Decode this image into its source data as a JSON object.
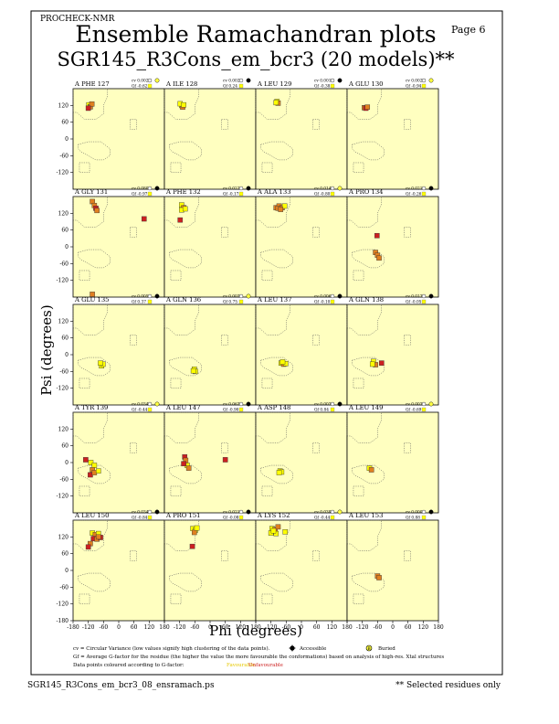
{
  "header": {
    "program": "PROCHECK-NMR",
    "page": "Page  6",
    "title1": "Ensemble Ramachandran plots",
    "title2": "SGR145_R3Cons_em_bcr3 (20 models)**"
  },
  "chart_data": {
    "type": "scatter",
    "title": "Ensemble Ramachandran plots",
    "xlabel": "Phi (degrees)",
    "ylabel": "Psi (degrees)",
    "xlim": [
      -180,
      180
    ],
    "ylim": [
      -180,
      180
    ],
    "xticks": [
      "-180",
      "-120",
      "-60",
      "0",
      "60",
      "120",
      "180"
    ],
    "yticks": [
      "120",
      "60",
      "0",
      "-60",
      "-120"
    ],
    "yticks_bottom": [
      "120",
      "60",
      "0",
      "-60",
      "-120",
      "-180"
    ],
    "panels": [
      {
        "label": "A PHE 127",
        "cv": "cv 0.002",
        "gf": "Gf -0.62",
        "points": [
          [
            -118,
            122,
            "y"
          ],
          [
            -112,
            115,
            "o"
          ],
          [
            -106,
            125,
            "o"
          ],
          [
            -120,
            110,
            "r"
          ]
        ]
      },
      {
        "label": "A ILE 128",
        "cv": "cv 0.002",
        "gf": "Gf 0.24",
        "points": [
          [
            -112,
            120,
            "y"
          ],
          [
            -108,
            114,
            "o"
          ],
          [
            -118,
            126,
            "y"
          ],
          [
            -104,
            122,
            "y"
          ]
        ]
      },
      {
        "label": "A LEU 129",
        "cv": "cv 0.001",
        "gf": "Gf -0.38",
        "points": [
          [
            -96,
            134,
            "y"
          ],
          [
            -92,
            128,
            "o"
          ],
          [
            -100,
            130,
            "y"
          ]
        ]
      },
      {
        "label": "A GLU 130",
        "cv": "cv 0.002",
        "gf": "Gf -0.94",
        "points": [
          [
            -112,
            112,
            "o"
          ],
          [
            -106,
            110,
            "r"
          ],
          [
            -100,
            114,
            "o"
          ]
        ]
      },
      {
        "label": "A GLY 131",
        "cv": "cv 0.080",
        "gf": "Gf -0.97",
        "points": [
          [
            -104,
            162,
            "o"
          ],
          [
            -96,
            148,
            "o"
          ],
          [
            -90,
            138,
            "r"
          ],
          [
            -86,
            130,
            "o"
          ],
          [
            100,
            100,
            "r"
          ],
          [
            -104,
            -170,
            "o"
          ]
        ]
      },
      {
        "label": "A PHE 132",
        "cv": "cv 0.022",
        "gf": "Gf -0.17",
        "points": [
          [
            -112,
            150,
            "y"
          ],
          [
            -104,
            140,
            "o"
          ],
          [
            -112,
            132,
            "y"
          ],
          [
            -98,
            136,
            "y"
          ],
          [
            -118,
            96,
            "r"
          ]
        ]
      },
      {
        "label": "A ALA 133",
        "cv": "cv 0.014",
        "gf": "Gf -0.80",
        "points": [
          [
            -100,
            140,
            "o"
          ],
          [
            -88,
            146,
            "o"
          ],
          [
            -76,
            140,
            "o"
          ],
          [
            -66,
            146,
            "y"
          ],
          [
            -92,
            138,
            "o"
          ],
          [
            -82,
            134,
            "o"
          ]
        ]
      },
      {
        "label": "A PRO 134",
        "cv": "cv 0.021",
        "gf": "Gf -0.26",
        "points": [
          [
            -68,
            -20,
            "o"
          ],
          [
            -60,
            -30,
            "o"
          ],
          [
            -54,
            -40,
            "o"
          ],
          [
            -62,
            40,
            "r"
          ]
        ]
      },
      {
        "label": "A GLU 135",
        "cv": "cv 0.005",
        "gf": "Gf 0.37",
        "points": [
          [
            -68,
            -40,
            "y"
          ],
          [
            -62,
            -34,
            "y"
          ],
          [
            -72,
            -30,
            "y"
          ]
        ]
      },
      {
        "label": "A GLN 136",
        "cv": "cv 0.003",
        "gf": "Gf 0.75",
        "points": [
          [
            -62,
            -52,
            "y"
          ],
          [
            -58,
            -60,
            "y"
          ],
          [
            -66,
            -58,
            "y"
          ]
        ]
      },
      {
        "label": "A LEU 137",
        "cv": "cv 0.006",
        "gf": "Gf -0.10",
        "points": [
          [
            -80,
            -30,
            "y"
          ],
          [
            -70,
            -34,
            "o"
          ],
          [
            -62,
            -32,
            "y"
          ],
          [
            -74,
            -26,
            "y"
          ]
        ]
      },
      {
        "label": "A GLN 138",
        "cv": "cv 0.013",
        "gf": "Gf -0.05",
        "points": [
          [
            -76,
            -24,
            "y"
          ],
          [
            -68,
            -36,
            "o"
          ],
          [
            -80,
            -34,
            "y"
          ],
          [
            -44,
            -30,
            "r"
          ]
        ]
      },
      {
        "label": "A TYR 139",
        "cv": "cv 0.034",
        "gf": "Gf -0.44",
        "points": [
          [
            -130,
            10,
            "r"
          ],
          [
            -110,
            0,
            "y"
          ],
          [
            -96,
            -10,
            "y"
          ],
          [
            -104,
            -26,
            "o"
          ],
          [
            -112,
            -44,
            "r"
          ],
          [
            -96,
            -36,
            "o"
          ],
          [
            -80,
            -30,
            "y"
          ]
        ]
      },
      {
        "label": "A LEU 147",
        "cv": "cv 0.063",
        "gf": "Gf -0.90",
        "points": [
          [
            -100,
            20,
            "r"
          ],
          [
            -96,
            8,
            "o"
          ],
          [
            -90,
            -10,
            "y"
          ],
          [
            -84,
            -20,
            "o"
          ],
          [
            -104,
            -4,
            "r"
          ],
          [
            60,
            10,
            "r"
          ]
        ]
      },
      {
        "label": "A ASP 148",
        "cv": "cv 0.003",
        "gf": "Gf 0.84",
        "points": [
          [
            -84,
            -30,
            "y"
          ],
          [
            -78,
            -34,
            "y"
          ],
          [
            -88,
            -36,
            "y"
          ]
        ]
      },
      {
        "label": "A LEU 149",
        "cv": "cv 0.003",
        "gf": "Gf -0.69",
        "points": [
          [
            -92,
            -20,
            "y"
          ],
          [
            -84,
            -26,
            "o"
          ]
        ]
      },
      {
        "label": "A LEU 150",
        "cv": "cv 0.034",
        "gf": "Gf -0.84",
        "points": [
          [
            -104,
            134,
            "y"
          ],
          [
            -92,
            128,
            "o"
          ],
          [
            -80,
            132,
            "y"
          ],
          [
            -100,
            114,
            "r"
          ],
          [
            -86,
            112,
            "o"
          ],
          [
            -112,
            96,
            "o"
          ],
          [
            -120,
            84,
            "r"
          ],
          [
            -72,
            118,
            "r"
          ],
          [
            -80,
            120,
            "o"
          ]
        ]
      },
      {
        "label": "A PRO 151",
        "cv": "cv 0.021",
        "gf": "Gf -0.08",
        "points": [
          [
            -68,
            150,
            "y"
          ],
          [
            -58,
            144,
            "y"
          ],
          [
            -62,
            136,
            "o"
          ],
          [
            -52,
            152,
            "y"
          ],
          [
            -70,
            86,
            "r"
          ]
        ]
      },
      {
        "label": "A LYS 152",
        "cv": "cv 0.039",
        "gf": "Gf -0.44",
        "points": [
          [
            -116,
            150,
            "y"
          ],
          [
            -104,
            146,
            "o"
          ],
          [
            -92,
            156,
            "o"
          ],
          [
            -120,
            134,
            "y"
          ],
          [
            -100,
            132,
            "y"
          ],
          [
            -64,
            138,
            "y"
          ],
          [
            -110,
            142,
            "y"
          ]
        ]
      },
      {
        "label": "A LEU 153",
        "cv": "cv 0.000",
        "gf": "Gf 0.88",
        "points": [
          [
            -60,
            -20,
            "o"
          ],
          [
            -54,
            -26,
            "o"
          ]
        ]
      }
    ]
  },
  "legend": {
    "cv_text": "cv = Circular Variance (low values signify high clustering of the data points).",
    "accessible": "Accessible",
    "buried": "Buried",
    "gf_text": "Gf = Average G-factor for the residue (the higher the value the more favourable the conformations) based on analysis of high-res. Xtal structures",
    "colour_text": "Data points coloured according to G-factor:",
    "favourable": "Favourable",
    "unfavourable": "Unfavourable"
  },
  "footer": {
    "file": "SGR145_R3Cons_em_bcr3_08_ensramach.ps",
    "note": "** Selected residues only"
  },
  "colors": {
    "panel_bg": "#ffffc0",
    "favourable": "#ffff00",
    "mid": "#e08020",
    "unfavourable": "#cc2020"
  }
}
